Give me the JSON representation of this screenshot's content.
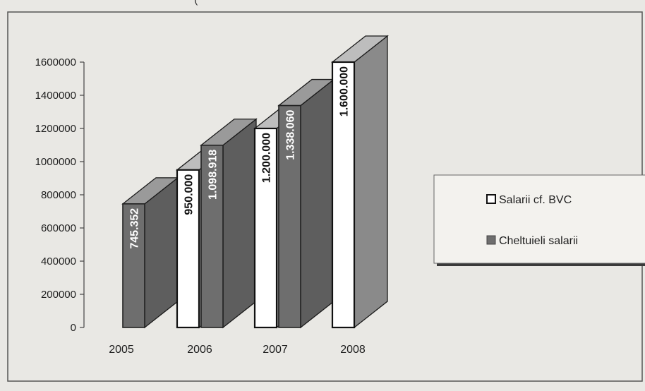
{
  "chart_data": {
    "type": "bar",
    "title": "",
    "xlabel": "",
    "ylabel": "",
    "categories": [
      "2005",
      "2006",
      "2007",
      "2008"
    ],
    "ylim": [
      0,
      1600000
    ],
    "yticks": [
      0,
      200000,
      400000,
      600000,
      800000,
      1000000,
      1200000,
      1400000,
      1600000
    ],
    "ytick_labels": [
      "0",
      "200000",
      "400000",
      "600000",
      "800000",
      "1000000",
      "1200000",
      "1400000",
      "1600000"
    ],
    "series": [
      {
        "name": "Salarii cf. BVC",
        "values": [
          null,
          950000,
          1200000,
          1600000
        ],
        "labels": [
          "",
          "950.000",
          "1.200.000",
          "1.600.000"
        ],
        "color": "#ffffff"
      },
      {
        "name": "Cheltuieli salarii",
        "values": [
          745352,
          1098918,
          1338060,
          null
        ],
        "labels": [
          "745.352",
          "1.098.918",
          "1.338.060",
          ""
        ],
        "color": "#6e6e6e"
      }
    ],
    "legend": "right",
    "grid": false,
    "bar_style": "3d"
  },
  "top_caption_fragment": "(",
  "colors": {
    "background": "#e9e8e4",
    "plot_frame": "#555555",
    "dark_bar": "#6e6e6e",
    "light_bar": "#ffffff"
  }
}
